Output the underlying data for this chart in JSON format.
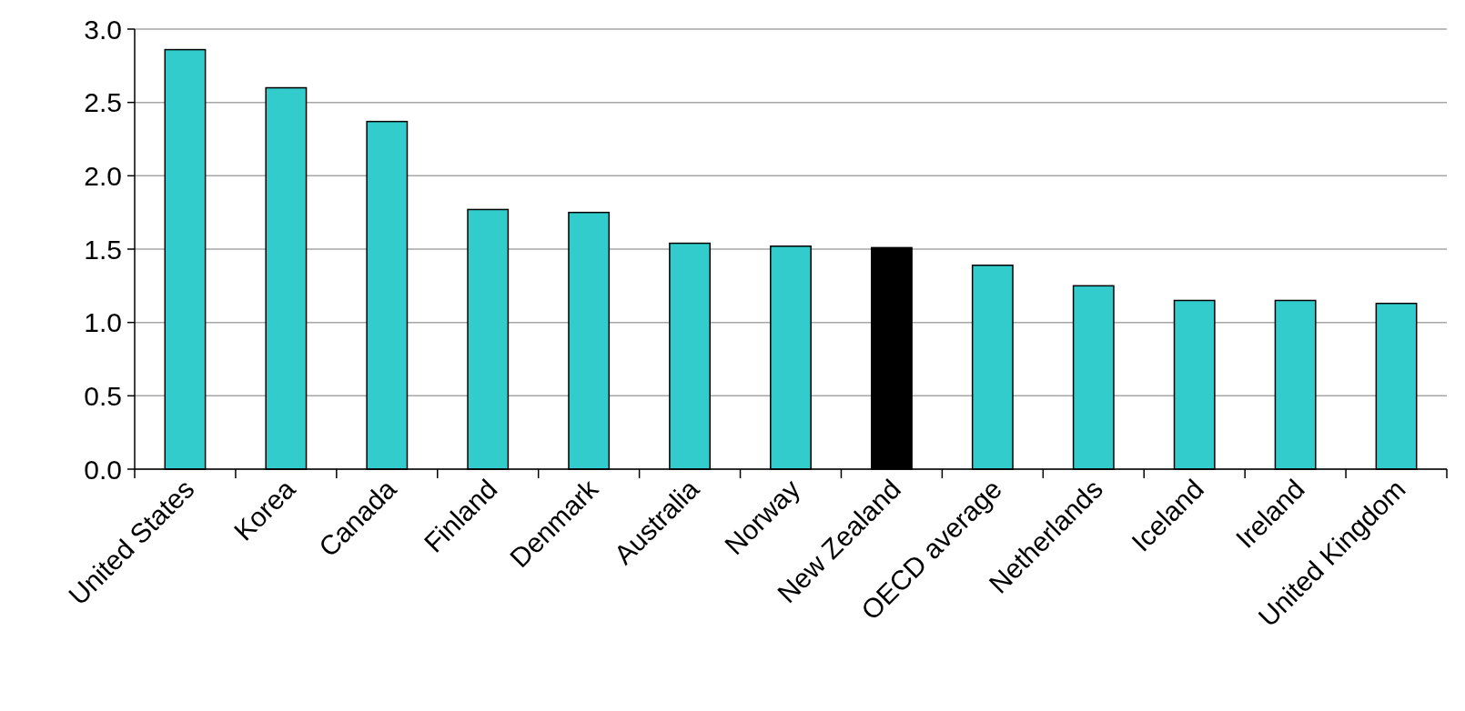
{
  "chart_data": {
    "type": "bar",
    "categories": [
      "United States",
      "Korea",
      "Canada",
      "Finland",
      "Denmark",
      "Australia",
      "Norway",
      "New Zealand",
      "OECD average",
      "Netherlands",
      "Iceland",
      "Ireland",
      "United Kingdom"
    ],
    "values": [
      2.86,
      2.6,
      2.37,
      1.77,
      1.75,
      1.54,
      1.52,
      1.51,
      1.39,
      1.25,
      1.15,
      1.15,
      1.13
    ],
    "colors": [
      "#33cccc",
      "#33cccc",
      "#33cccc",
      "#33cccc",
      "#33cccc",
      "#33cccc",
      "#33cccc",
      "#000000",
      "#33cccc",
      "#33cccc",
      "#33cccc",
      "#33cccc",
      "#33cccc"
    ],
    "ylim": [
      0,
      3
    ],
    "yticks": [
      {
        "value": 0,
        "label": "0.0"
      },
      {
        "value": 0.5,
        "label": "0.5"
      },
      {
        "value": 1,
        "label": "1.0"
      },
      {
        "value": 1.5,
        "label": "1.5"
      },
      {
        "value": 2,
        "label": "2.0"
      },
      {
        "value": 2.5,
        "label": "2.5"
      },
      {
        "value": 3,
        "label": "3.0"
      }
    ],
    "grid": true
  }
}
